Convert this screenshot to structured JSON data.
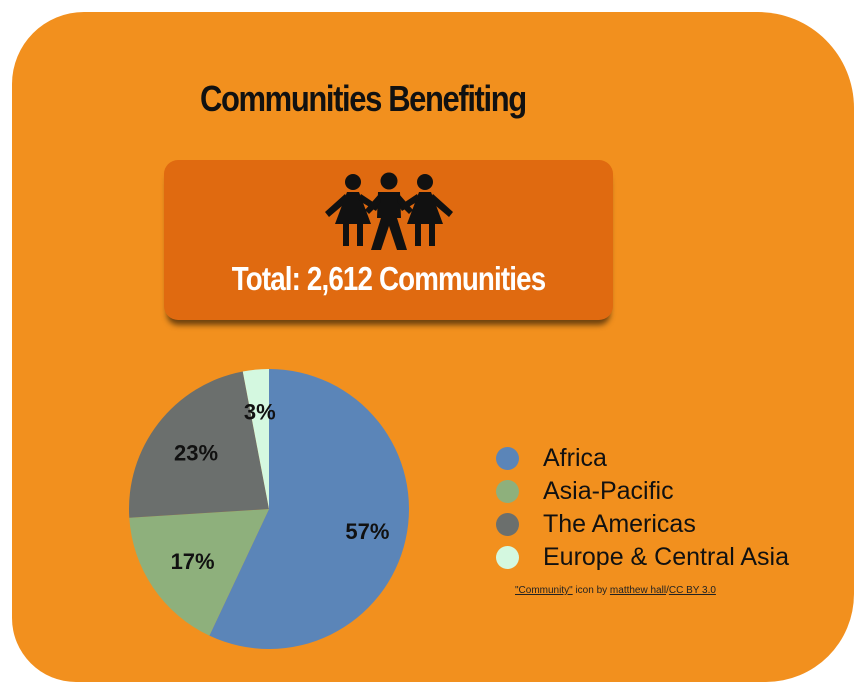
{
  "title": "Communities Benefiting",
  "total_label": "Total: 2,612 Communities",
  "icon": "community-people-icon",
  "colors": {
    "background": "#f2901e",
    "total_box": "#e06a10",
    "africa": "#5b85b8",
    "asia_pacific": "#8eb07c",
    "americas": "#6b6f6d",
    "europe": "#d4f8e0"
  },
  "chart_data": {
    "type": "pie",
    "categories": [
      "Africa",
      "Asia-Pacific",
      "The Americas",
      "Europe & Central Asia"
    ],
    "values": [
      57,
      17,
      23,
      3
    ],
    "value_labels": [
      "57%",
      "17%",
      "23%",
      "3%"
    ],
    "unit": "%",
    "legend_position": "right"
  },
  "credit": {
    "link_icon": "\"Community\"",
    "middle": " icon by ",
    "link_author": "matthew hall",
    "sep": "/",
    "link_license": "CC BY 3.0"
  }
}
